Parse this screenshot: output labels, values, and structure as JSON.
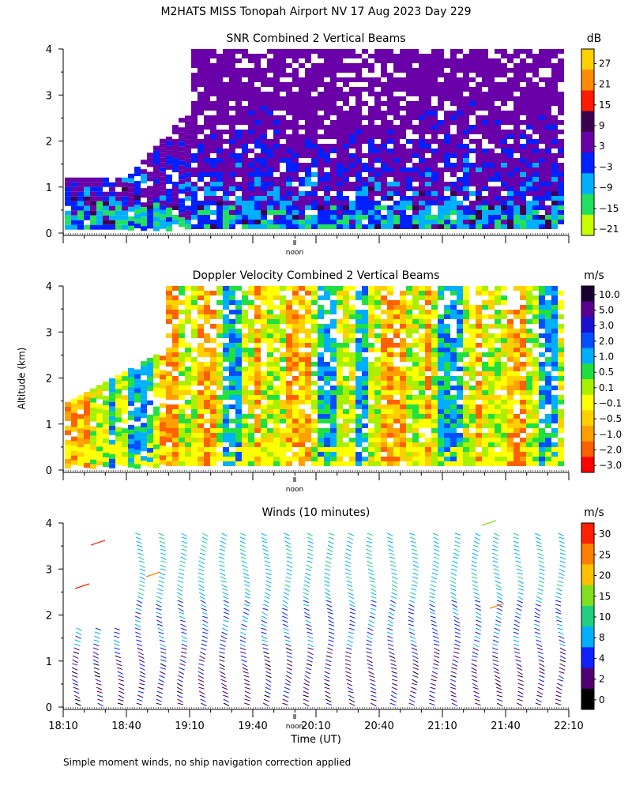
{
  "header": {
    "title": "M2HATS MISS Tonopah Airport NV  17 Aug 2023 Day 229",
    "y_axis_label": "Altitude (km)",
    "footnote": "Simple moment winds, no ship navigation correction applied"
  },
  "chart_data": [
    {
      "type": "heatmap",
      "title": "SNR Combined 2 Vertical Beams",
      "units": "dB",
      "ylabel": "Altitude (km)",
      "ylim": [
        0,
        4
      ],
      "y_ticks": [
        "0",
        "1",
        "2",
        "3",
        "4"
      ],
      "x_marker": "noon",
      "colorbar_labels": [
        "27",
        "21",
        "15",
        "9",
        "3",
        "−3",
        "−9",
        "−15",
        "−21"
      ],
      "colorbar_colors": [
        "#ffd000",
        "#ff8c00",
        "#ff1a00",
        "#3c0050",
        "#6a00a8",
        "#0020ff",
        "#00b0ff",
        "#20e060",
        "#c8ff00"
      ]
    },
    {
      "type": "heatmap",
      "title": "Doppler Velocity Combined 2 Vertical Beams",
      "units": "m/s",
      "ylabel": "Altitude (km)",
      "ylim": [
        0,
        4
      ],
      "y_ticks": [
        "0",
        "1",
        "2",
        "3",
        "4"
      ],
      "x_marker": "noon",
      "colorbar_labels": [
        "10.0",
        "5.0",
        "3.0",
        "2.0",
        "1.0",
        "0.5",
        "0.1",
        "−0.1",
        "−0.5",
        "−1.0",
        "−2.0",
        "−3.0"
      ],
      "colorbar_colors": [
        "#1a0030",
        "#5a0090",
        "#1a10d0",
        "#0050ff",
        "#00b0ff",
        "#20e040",
        "#a8f000",
        "#ffff00",
        "#ffd000",
        "#ffa000",
        "#ff6000",
        "#ff0000"
      ]
    },
    {
      "type": "wind-barbs",
      "title": "Winds (10 minutes)",
      "units": "m/s",
      "ylabel": "Altitude (km)",
      "ylim": [
        0,
        4
      ],
      "y_ticks": [
        "0",
        "1",
        "2",
        "3",
        "4"
      ],
      "x_marker": "noon",
      "xlabel": "Time (UT)",
      "x_ticks": [
        "18:10",
        "18:40",
        "19:10",
        "19:40",
        "20:10",
        "20:40",
        "21:10",
        "21:40",
        "22:10"
      ],
      "colorbar_labels": [
        "30",
        "25",
        "20",
        "15",
        "10",
        "8",
        "4",
        "2",
        "0"
      ],
      "colorbar_colors": [
        "#ff2000",
        "#ff8000",
        "#ffc000",
        "#80e020",
        "#20d080",
        "#00b0ff",
        "#1020ff",
        "#500070",
        "#000000"
      ]
    }
  ]
}
